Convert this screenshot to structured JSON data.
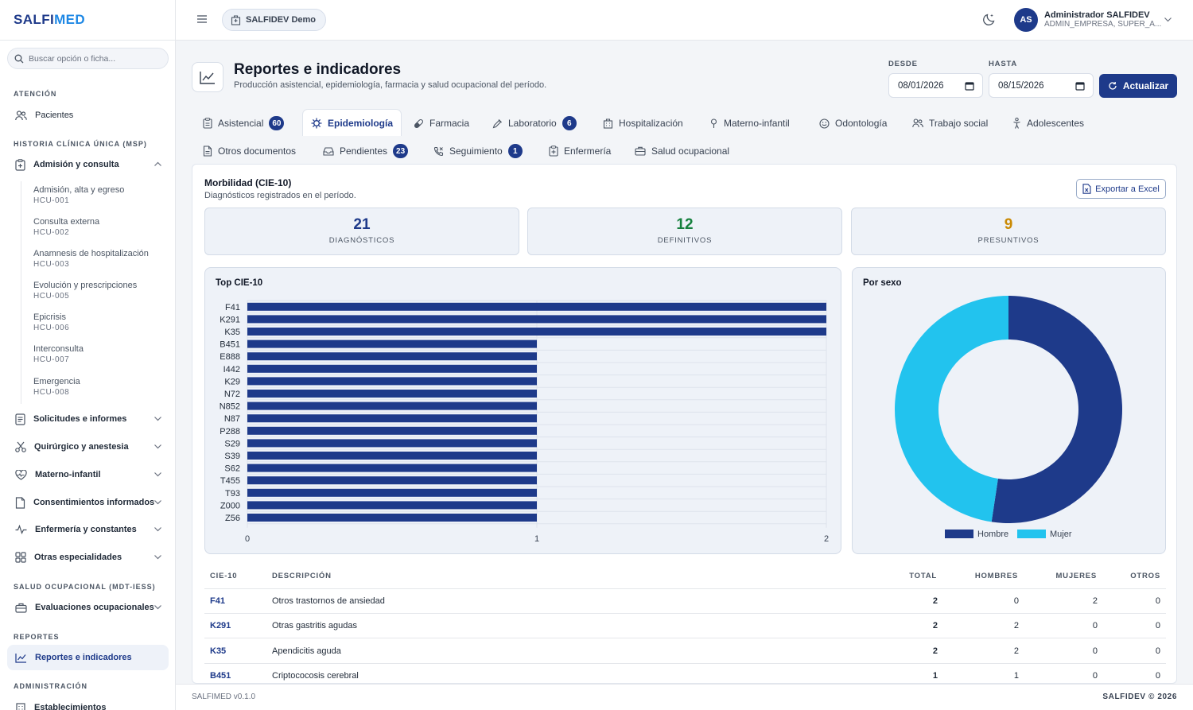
{
  "brand": {
    "part1": "SALFI",
    "part2": "MED"
  },
  "sidebar": {
    "search_placeholder": "Buscar opción o ficha...",
    "sections": {
      "atencion": "ATENCIÓN",
      "historia": "HISTORIA CLÍNICA ÚNICA (MSP)",
      "salud_ocup": "SALUD OCUPACIONAL (MDT-IESS)",
      "reportes": "REPORTES",
      "admin": "ADMINISTRACIÓN"
    },
    "pacientes": "Pacientes",
    "admision": "Admisión y consulta",
    "sub_items": [
      {
        "label": "Admisión, alta y egreso",
        "code": "HCU-001"
      },
      {
        "label": "Consulta externa",
        "code": "HCU-002"
      },
      {
        "label": "Anamnesis de hospitalización",
        "code": "HCU-003"
      },
      {
        "label": "Evolución y prescripciones",
        "code": "HCU-005"
      },
      {
        "label": "Epicrisis",
        "code": "HCU-006"
      },
      {
        "label": "Interconsulta",
        "code": "HCU-007"
      },
      {
        "label": "Emergencia",
        "code": "HCU-008"
      }
    ],
    "groups": [
      "Solicitudes e informes",
      "Quirúrgico y anestesia",
      "Materno-infantil",
      "Consentimientos informados",
      "Enfermería y constantes",
      "Otras especialidades"
    ],
    "evaluaciones": "Evaluaciones ocupacionales",
    "reportes_item": "Reportes e indicadores",
    "establecimientos": "Establecimientos"
  },
  "topbar": {
    "tenant": "SALFIDEV Demo",
    "avatar_initials": "AS",
    "user_name": "Administrador SALFIDEV",
    "user_role": "ADMIN_EMPRESA, SUPER_A..."
  },
  "header": {
    "title": "Reportes e indicadores",
    "subtitle": "Producción asistencial, epidemiología, farmacia y salud ocupacional del período.",
    "desde_label": "DESDE",
    "desde_value": "08/01/2026",
    "hasta_label": "HASTA",
    "hasta_value": "08/15/2026",
    "update_button": "Actualizar"
  },
  "tabs_row1": [
    {
      "label": "Asistencial",
      "badge": "60"
    },
    {
      "label": "Epidemiología",
      "badge": ""
    },
    {
      "label": "Farmacia",
      "badge": ""
    },
    {
      "label": "Laboratorio",
      "badge": "6"
    },
    {
      "label": "Hospitalización",
      "badge": ""
    },
    {
      "label": "Materno-infantil",
      "badge": ""
    },
    {
      "label": "Odontología",
      "badge": ""
    },
    {
      "label": "Trabajo social",
      "badge": ""
    },
    {
      "label": "Adolescentes",
      "badge": ""
    }
  ],
  "tabs_row2": [
    {
      "label": "Otros documentos",
      "badge": ""
    },
    {
      "label": "Pendientes",
      "badge": "23"
    },
    {
      "label": "Seguimiento",
      "badge": "1"
    },
    {
      "label": "Enfermería",
      "badge": ""
    },
    {
      "label": "Salud ocupacional",
      "badge": ""
    }
  ],
  "morbilidad": {
    "title": "Morbilidad (CIE-10)",
    "subtitle": "Diagnósticos registrados en el período.",
    "export_button": "Exportar a Excel",
    "kpis": [
      {
        "value": "21",
        "label": "DIAGNÓSTICOS",
        "color": "#1e3a8a"
      },
      {
        "value": "12",
        "label": "DEFINITIVOS",
        "color": "#15803d"
      },
      {
        "value": "9",
        "label": "PRESUNTIVOS",
        "color": "#ca8a04"
      }
    ],
    "top_title": "Top CIE-10",
    "sex_title": "Por sexo"
  },
  "chart_data": [
    {
      "type": "bar",
      "orientation": "horizontal",
      "title": "Top CIE-10",
      "categories": [
        "F41",
        "K291",
        "K35",
        "B451",
        "E888",
        "I442",
        "K29",
        "N72",
        "N852",
        "N87",
        "P288",
        "S29",
        "S39",
        "S62",
        "T455",
        "T93",
        "Z000",
        "Z56"
      ],
      "values": [
        2,
        2,
        2,
        1,
        1,
        1,
        1,
        1,
        1,
        1,
        1,
        1,
        1,
        1,
        1,
        1,
        1,
        1
      ],
      "xlim": [
        0,
        2
      ],
      "x_ticks": [
        "0",
        "1",
        "2"
      ],
      "grid": true,
      "color": "#1e3a8a"
    },
    {
      "type": "pie",
      "title": "Por sexo",
      "donut": true,
      "labels": [
        "Hombre",
        "Mujer"
      ],
      "values": [
        11,
        10
      ],
      "colors": [
        "#1e3a8a",
        "#22c3ee"
      ],
      "legend": "bottom"
    }
  ],
  "table": {
    "headers": {
      "code": "CIE-10",
      "desc": "DESCRIPCIÓN",
      "total": "TOTAL",
      "hombres": "HOMBRES",
      "mujeres": "MUJERES",
      "otros": "OTROS"
    },
    "rows": [
      {
        "code": "F41",
        "desc": "Otros trastornos de ansiedad",
        "total": "2",
        "hombres": "0",
        "mujeres": "2",
        "otros": "0"
      },
      {
        "code": "K291",
        "desc": "Otras gastritis agudas",
        "total": "2",
        "hombres": "2",
        "mujeres": "0",
        "otros": "0"
      },
      {
        "code": "K35",
        "desc": "Apendicitis aguda",
        "total": "2",
        "hombres": "2",
        "mujeres": "0",
        "otros": "0"
      },
      {
        "code": "B451",
        "desc": "Criptococosis cerebral",
        "total": "1",
        "hombres": "1",
        "mujeres": "0",
        "otros": "0"
      }
    ]
  },
  "footer": {
    "version": "SALFIMED v0.1.0",
    "copyright": "SALFIDEV © 2026"
  }
}
